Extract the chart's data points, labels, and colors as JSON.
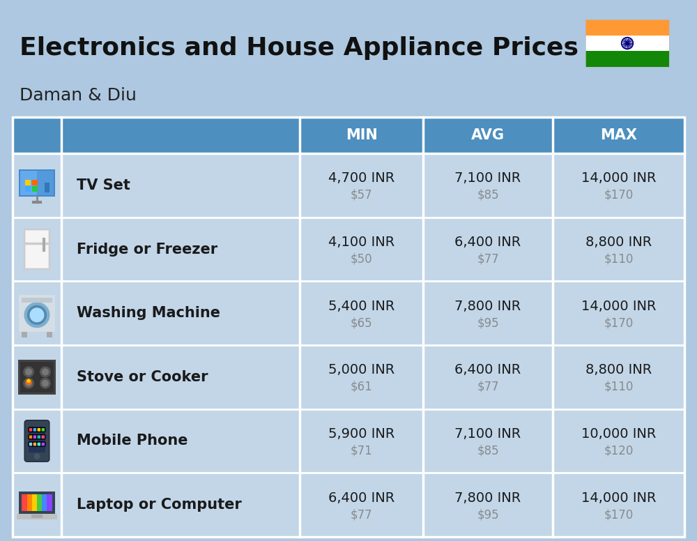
{
  "title_line1": "Electronics and House Appliance Prices",
  "subtitle": "Daman & Diu",
  "columns": [
    "MIN",
    "AVG",
    "MAX"
  ],
  "rows": [
    {
      "label": "TV Set",
      "min_inr": "4,700 INR",
      "min_usd": "$57",
      "avg_inr": "7,100 INR",
      "avg_usd": "$85",
      "max_inr": "14,000 INR",
      "max_usd": "$170"
    },
    {
      "label": "Fridge or Freezer",
      "min_inr": "4,100 INR",
      "min_usd": "$50",
      "avg_inr": "6,400 INR",
      "avg_usd": "$77",
      "max_inr": "8,800 INR",
      "max_usd": "$110"
    },
    {
      "label": "Washing Machine",
      "min_inr": "5,400 INR",
      "min_usd": "$65",
      "avg_inr": "7,800 INR",
      "avg_usd": "$95",
      "max_inr": "14,000 INR",
      "max_usd": "$170"
    },
    {
      "label": "Stove or Cooker",
      "min_inr": "5,000 INR",
      "min_usd": "$61",
      "avg_inr": "6,400 INR",
      "avg_usd": "$77",
      "max_inr": "8,800 INR",
      "max_usd": "$110"
    },
    {
      "label": "Mobile Phone",
      "min_inr": "5,900 INR",
      "min_usd": "$71",
      "avg_inr": "7,100 INR",
      "avg_usd": "$85",
      "max_inr": "10,000 INR",
      "max_usd": "$120"
    },
    {
      "label": "Laptop or Computer",
      "min_inr": "6,400 INR",
      "min_usd": "$77",
      "avg_inr": "7,800 INR",
      "avg_usd": "$95",
      "max_inr": "14,000 INR",
      "max_usd": "$170"
    }
  ],
  "bg_color": "#adc8e0",
  "header_bg_color": "#4d8fbf",
  "header_text_color": "#ffffff",
  "row_bg": "#c2d6e8",
  "cell_text_color": "#1a1a1a",
  "usd_text_color": "#8a8a8a",
  "title_color": "#111111",
  "subtitle_color": "#222222",
  "white": "#ffffff",
  "flag_orange": "#FF9933",
  "flag_white": "#FFFFFF",
  "flag_green": "#138808",
  "flag_navy": "#000080"
}
